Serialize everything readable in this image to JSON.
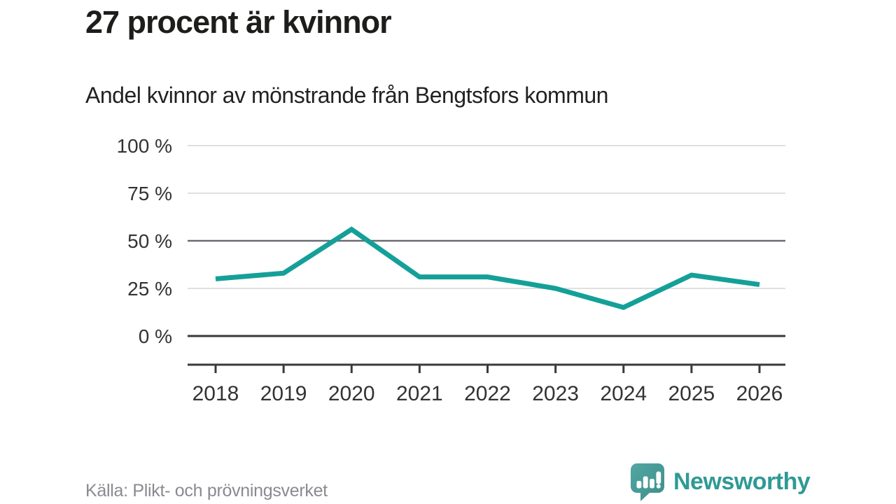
{
  "header": {
    "title": "27 procent är kvinnor",
    "subtitle": "Andel kvinnor av mönstrande från Bengtsfors kommun"
  },
  "chart_data": {
    "type": "line",
    "title": "27 procent är kvinnor",
    "subtitle": "Andel kvinnor av mönstrande från Bengtsfors kommun",
    "categories": [
      "2018",
      "2019",
      "2020",
      "2021",
      "2022",
      "2023",
      "2024",
      "2025",
      "2026"
    ],
    "series": [
      {
        "name": "Andel kvinnor av mönstrande",
        "values": [
          30,
          33,
          56,
          31,
          31,
          25,
          15,
          32,
          27
        ]
      }
    ],
    "xlabel": "",
    "ylabel": "",
    "ylim": [
      0,
      100
    ],
    "yticks": [
      0,
      25,
      50,
      75,
      100
    ],
    "ytick_suffix": " %",
    "grid": "horizontal",
    "emphasized_gridline": 50,
    "legend": "none",
    "line_color": "#14a098"
  },
  "footer": {
    "source": "Källa: Plikt- och prövningsverket",
    "brand": "Newsworthy"
  },
  "colors": {
    "accent": "#14a098",
    "brand_teal": "#2f9a94",
    "logo_bubble": "#4aa09c",
    "logo_bubble_dark": "#3b8e8a",
    "title_text": "#1d1d1b",
    "axis_text": "#333333",
    "grid_light": "#e0e0e0",
    "grid_mid": "#6a6a72",
    "axis_dark": "#3a3a3a",
    "source_text": "#8a8a90"
  }
}
